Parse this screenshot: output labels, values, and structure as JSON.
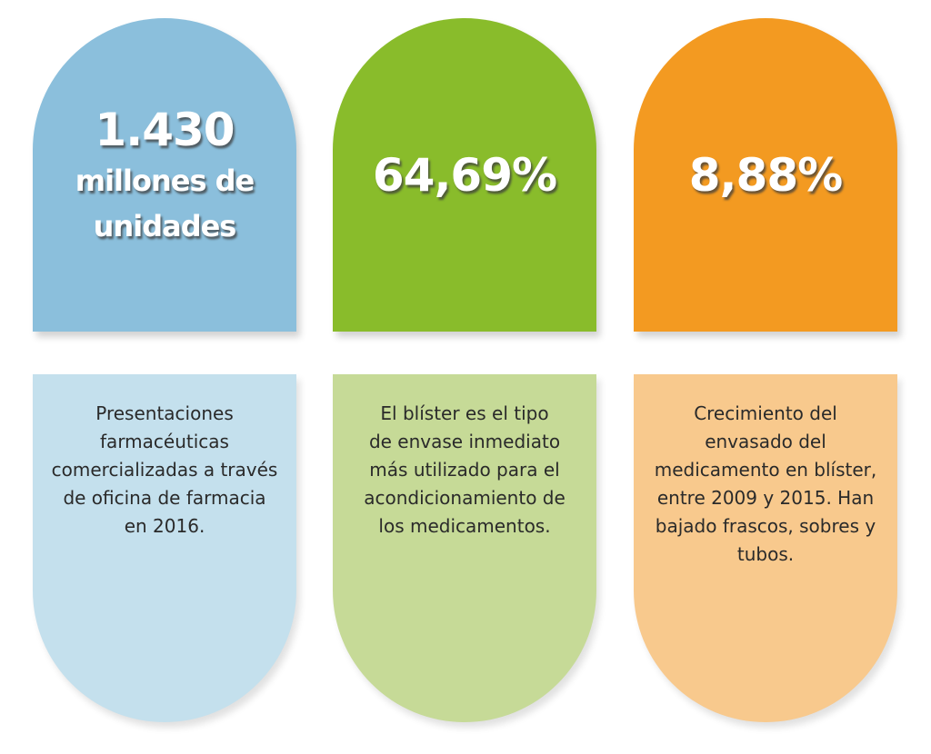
{
  "cards": [
    {
      "stat": [
        "1.430",
        "millones de",
        "unidades"
      ],
      "description": [
        "Presentaciones",
        "farmacéuticas",
        "comercializadas a través",
        "de oficina de farmacia",
        "en 2016."
      ]
    },
    {
      "stat": [
        "64,69%"
      ],
      "description": [
        "El blíster es el tipo",
        "de envase inmediato",
        "más utilizado para el",
        "acondicionamiento de",
        "los medicamentos."
      ]
    },
    {
      "stat": [
        "8,88%"
      ],
      "description": [
        "Crecimiento del",
        "envasado del",
        "medicamento en blíster,",
        "entre 2009 y 2015. Han",
        "bajado frascos, sobres y",
        "tubos."
      ]
    }
  ]
}
